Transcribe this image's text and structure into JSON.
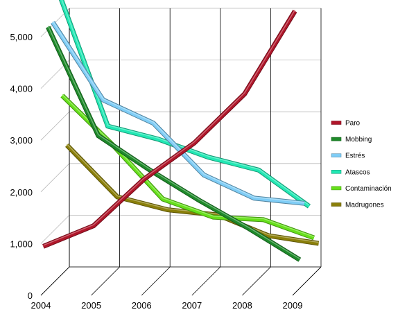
{
  "chart_data": {
    "type": "line",
    "title": "",
    "xlabel": "",
    "ylabel": "",
    "x": [
      "2004",
      "2005",
      "2006",
      "2007",
      "2008",
      "2009"
    ],
    "x_tick_labels": [
      "2004",
      "2005",
      "2006",
      "2007",
      "2008",
      "2009"
    ],
    "ylim": [
      0,
      5000
    ],
    "y_tick_labels": [
      "0",
      "1,000",
      "2,000",
      "3,000",
      "4,000",
      "5,000"
    ],
    "grid": true,
    "three_d": true,
    "legend_position": "right",
    "series": [
      {
        "name": "Paro",
        "color": "#b0162a",
        "values": [
          900,
          1300,
          2200,
          2900,
          3850,
          5450
        ]
      },
      {
        "name": "Mobbing",
        "color": "#1e8a2a",
        "values": [
          5050,
          2950,
          2300,
          1700,
          1150,
          550
        ]
      },
      {
        "name": "Estrés",
        "color": "#7fcdf6",
        "values": [
          5050,
          3550,
          3100,
          2100,
          1650,
          1550
        ]
      },
      {
        "name": "Atascos",
        "color": "#22e8b4",
        "values": [
          5600,
          2950,
          2700,
          2350,
          2100,
          1400
        ]
      },
      {
        "name": "Contaminación",
        "color": "#66e01a",
        "values": [
          3450,
          2500,
          1450,
          1100,
          1050,
          700
        ]
      },
      {
        "name": "Madrugones",
        "color": "#8a7f0a",
        "values": [
          2400,
          1400,
          1150,
          1050,
          650,
          500
        ]
      }
    ]
  }
}
